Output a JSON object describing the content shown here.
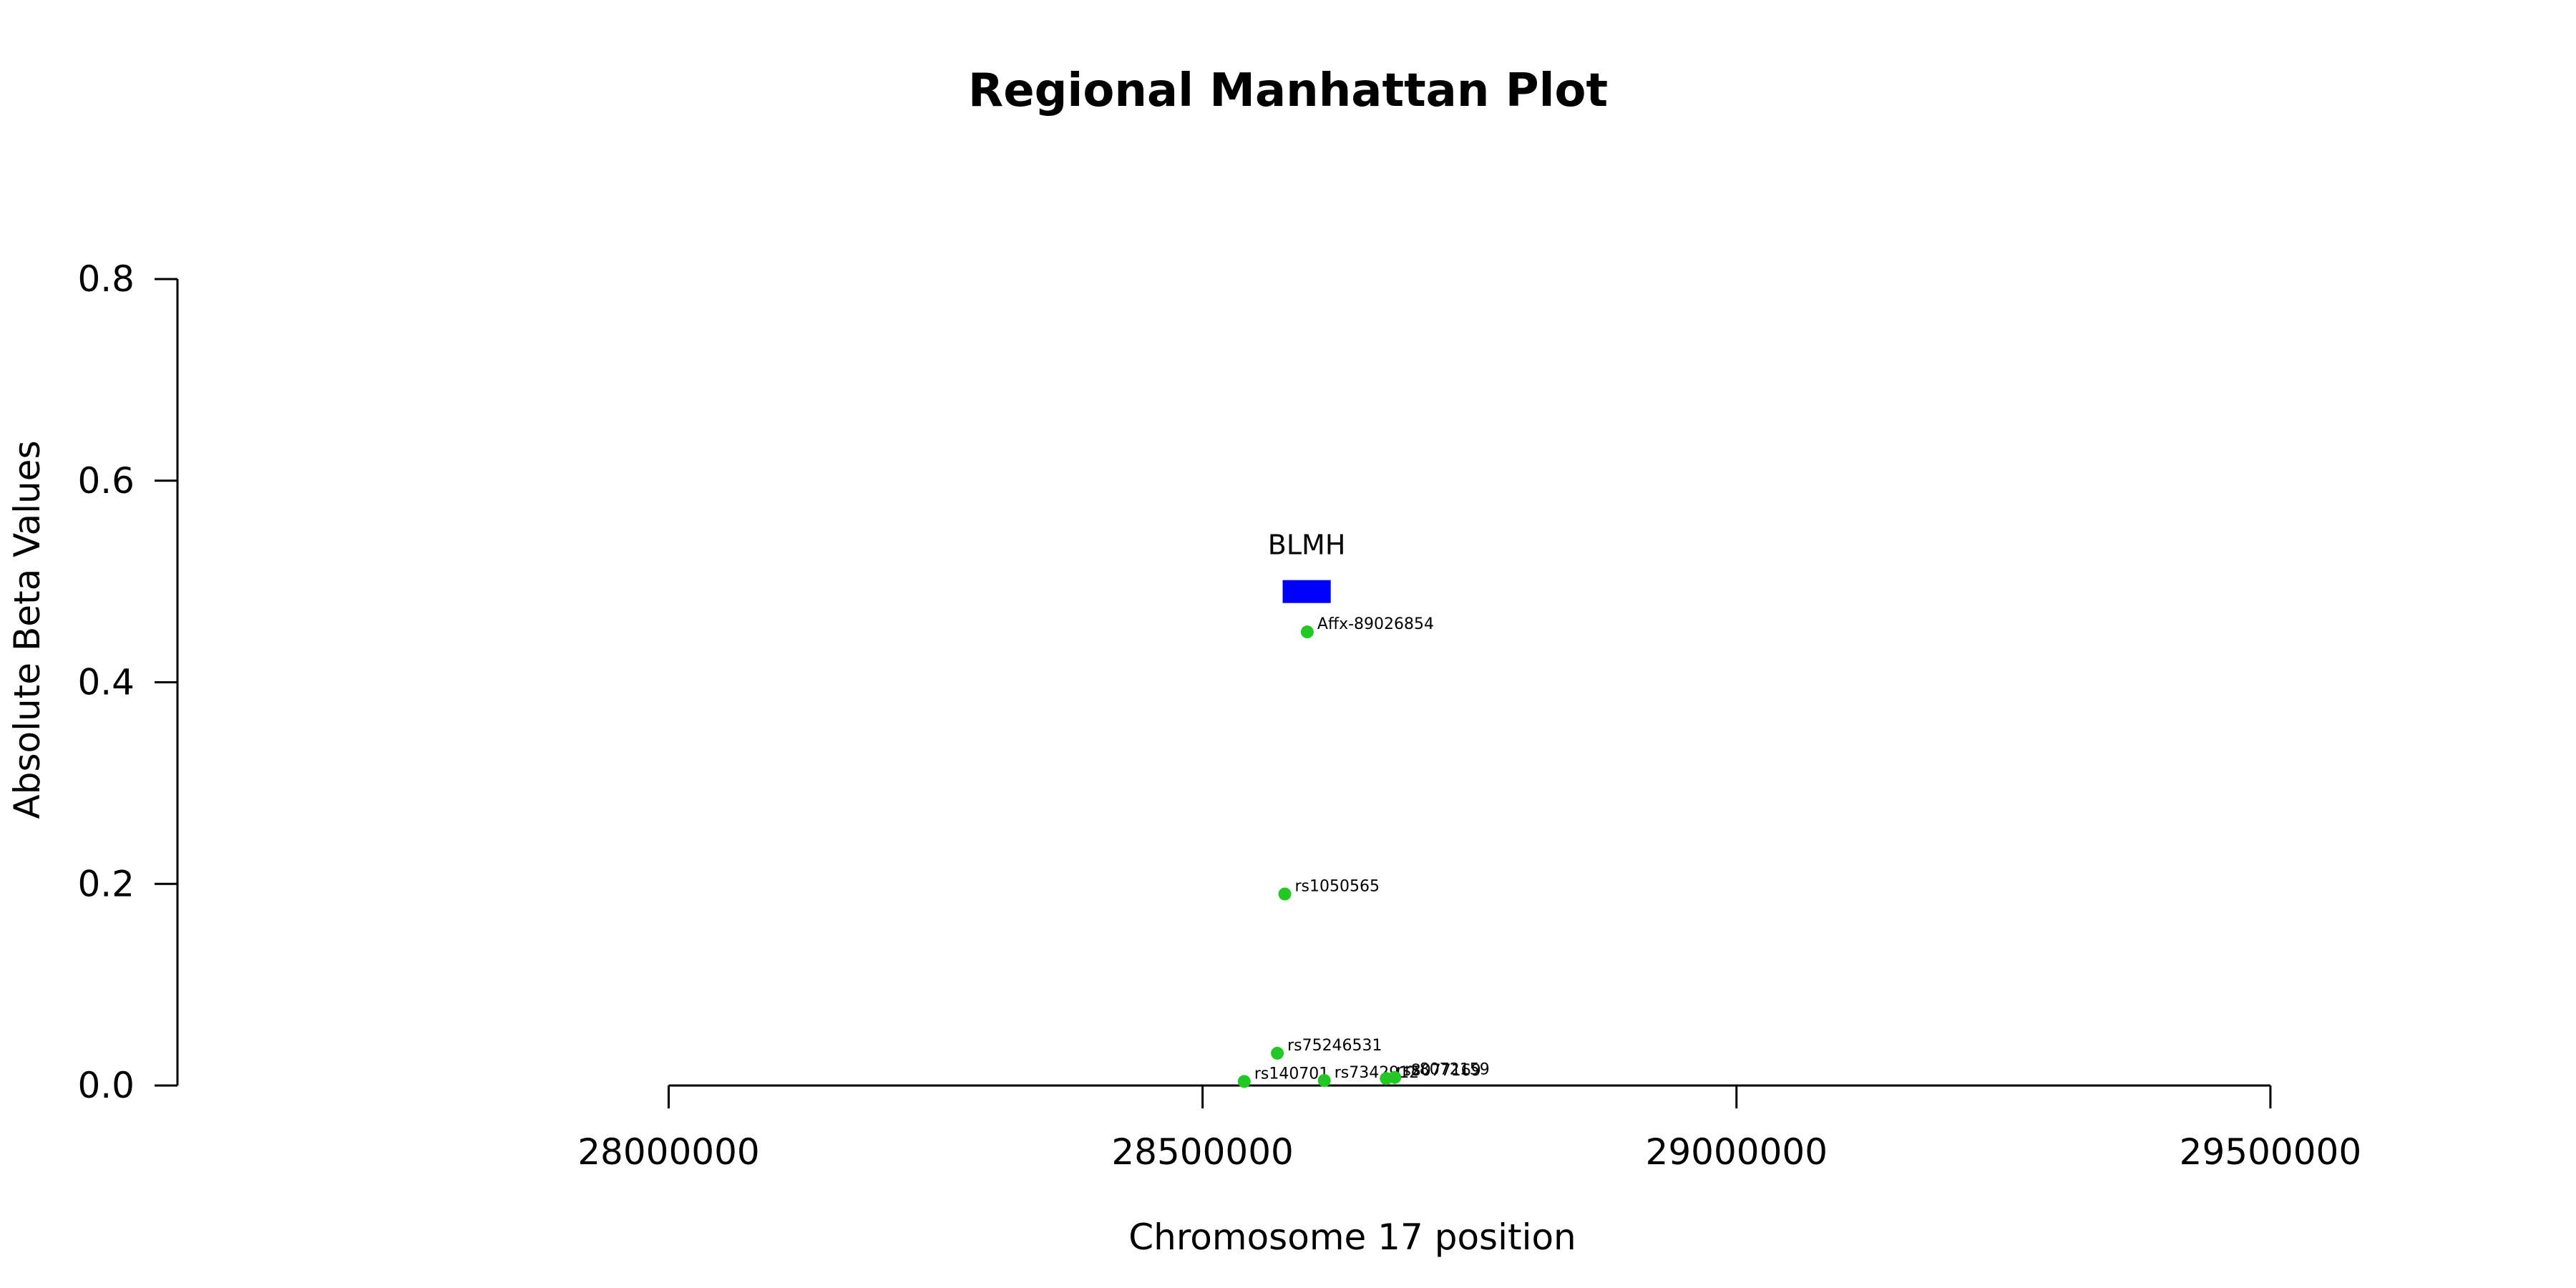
{
  "chart_data": {
    "type": "scatter",
    "title": "Regional Manhattan Plot",
    "xlabel": "Chromosome 17 position",
    "ylabel": "Absolute Beta Values",
    "xlim": [
      27540000,
      29620000
    ],
    "ylim": [
      0.0,
      0.8
    ],
    "x_ticks": [
      {
        "value": 28000000,
        "label": "28000000"
      },
      {
        "value": 28500000,
        "label": "28500000"
      },
      {
        "value": 29000000,
        "label": "29000000"
      },
      {
        "value": 29500000,
        "label": "29500000"
      }
    ],
    "y_ticks": [
      {
        "value": 0.0,
        "label": "0.0"
      },
      {
        "value": 0.2,
        "label": "0.2"
      },
      {
        "value": 0.4,
        "label": "0.4"
      },
      {
        "value": 0.6,
        "label": "0.6"
      },
      {
        "value": 0.8,
        "label": "0.8"
      }
    ],
    "x_axis_range": [
      28000000,
      29500000
    ],
    "y_axis_range": [
      0.0,
      0.8
    ],
    "grid": false,
    "point_color": "#22c922",
    "gene_color": "#0000ff",
    "genes": [
      {
        "name": "BLMH",
        "start": 28575000,
        "end": 28620000,
        "y": 0.49
      }
    ],
    "points": [
      {
        "label": "Affx-89026854",
        "x": 28598000,
        "y": 0.45
      },
      {
        "label": "rs1050565",
        "x": 28577000,
        "y": 0.19
      },
      {
        "label": "rs75246531",
        "x": 28570000,
        "y": 0.032
      },
      {
        "label": "rs140701",
        "x": 28539000,
        "y": 0.004
      },
      {
        "label": "rs7342912",
        "x": 28614000,
        "y": 0.005
      },
      {
        "label": "rs8077169",
        "x": 28672000,
        "y": 0.007
      },
      {
        "label": "rs8072159",
        "x": 28680000,
        "y": 0.008
      }
    ]
  }
}
